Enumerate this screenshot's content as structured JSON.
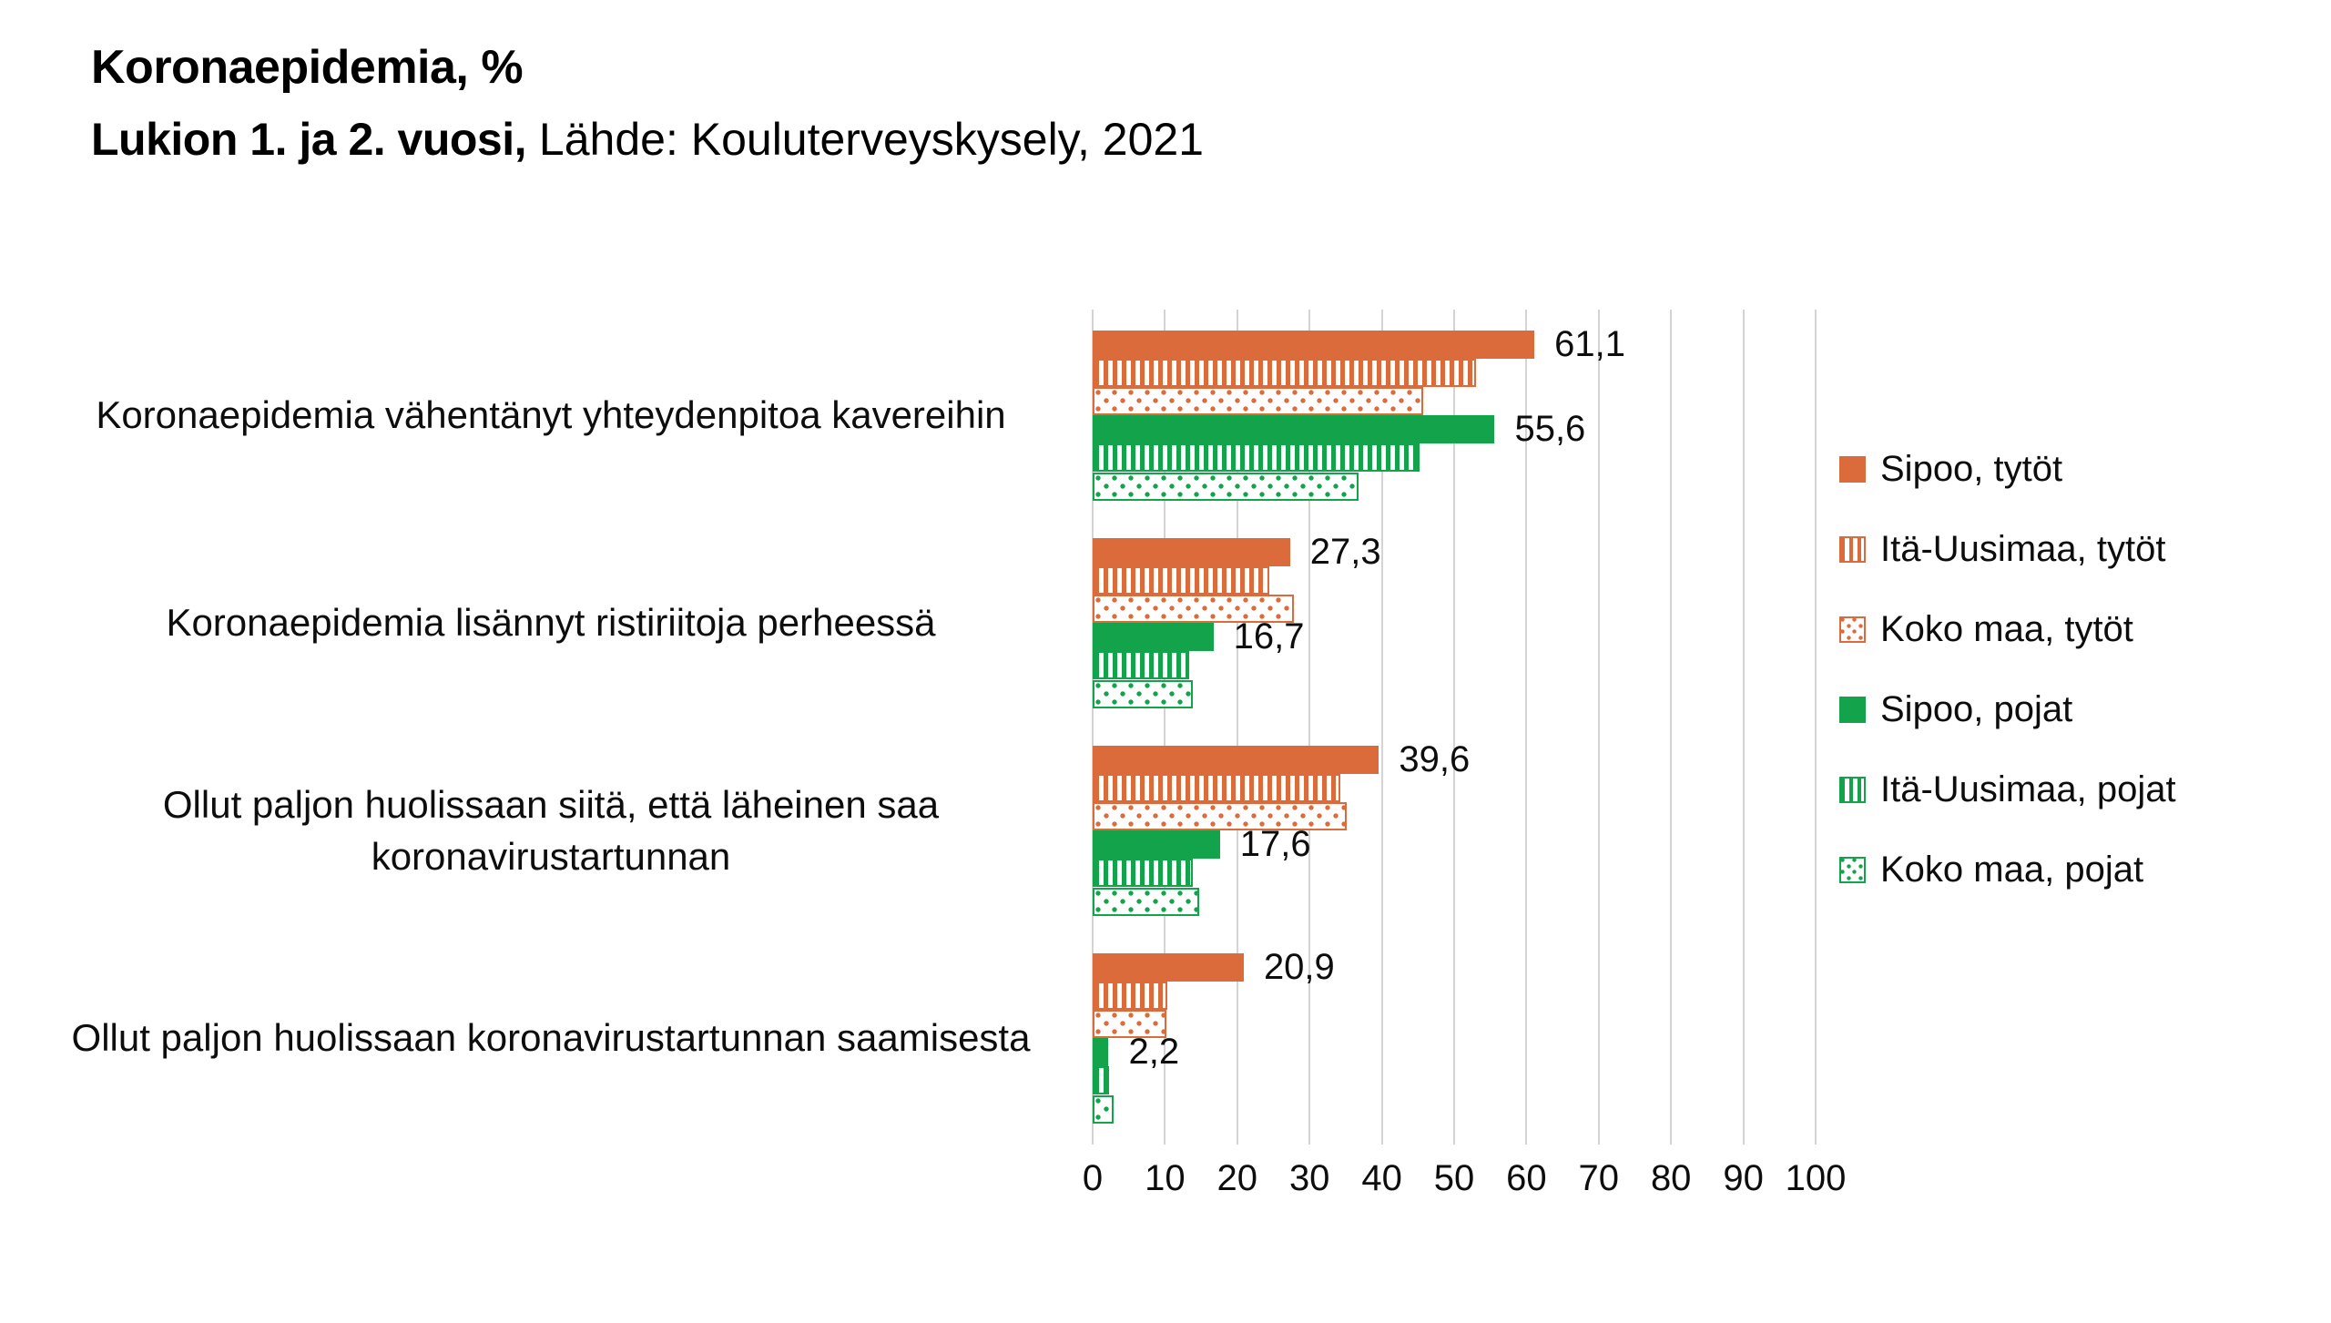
{
  "header": {
    "title": "Koronaepidemia, %",
    "subtitle_bold": "Lukion 1. ja 2. vuosi,",
    "subtitle_rest": " Lähde: Kouluterveyskysely, 2021"
  },
  "chart_data": {
    "type": "bar",
    "orientation": "horizontal",
    "title": "Koronaepidemia, %",
    "subtitle": "Lukion 1. ja 2. vuosi, Lähde: Kouluterveyskysely, 2021",
    "categories": [
      "Koronaepidemia vähentänyt yhteydenpitoa kavereihin",
      "Koronaepidemia lisännyt ristiriitoja perheessä",
      "Ollut paljon huolissaan siitä, että läheinen saa koronavirustartunnan",
      "Ollut paljon huolissaan koronavirustartunnan saamisesta"
    ],
    "series": [
      {
        "name": "Sipoo, tytöt",
        "color": "#DC6B3C",
        "pattern": "solid",
        "values": [
          61.1,
          27.3,
          39.6,
          20.9
        ],
        "labels": [
          "61,1",
          "27,3",
          "39,6",
          "20,9"
        ]
      },
      {
        "name": "Itä-Uusimaa, tytöt",
        "color": "#DC6B3C",
        "pattern": "stripes",
        "values": [
          53.0,
          24.4,
          34.3,
          10.3
        ],
        "labels": null
      },
      {
        "name": "Koko maa, tytöt",
        "color": "#DC6B3C",
        "pattern": "dots",
        "values": [
          45.7,
          27.8,
          35.2,
          10.2
        ],
        "labels": null
      },
      {
        "name": "Sipoo, pojat",
        "color": "#12A34B",
        "pattern": "solid",
        "values": [
          55.6,
          16.7,
          17.6,
          2.2
        ],
        "labels": [
          "55,6",
          "16,7",
          "17,6",
          "2,2"
        ]
      },
      {
        "name": "Itä-Uusimaa, pojat",
        "color": "#12A34B",
        "pattern": "stripes",
        "values": [
          45.2,
          13.3,
          13.8,
          2.3
        ],
        "labels": null
      },
      {
        "name": "Koko maa, pojat",
        "color": "#12A34B",
        "pattern": "dots",
        "values": [
          36.8,
          13.9,
          14.7,
          2.9
        ],
        "labels": null
      }
    ],
    "x_ticks": [
      "0",
      "10",
      "20",
      "30",
      "40",
      "50",
      "60",
      "70",
      "80",
      "90",
      "100"
    ],
    "xlim": [
      0,
      100
    ],
    "grid": true,
    "legend_position": "right",
    "colors": {
      "girls": "#DC6B3C",
      "boys": "#12A34B",
      "gridline": "#D4D4D4",
      "text": "#0D0D0D"
    }
  }
}
